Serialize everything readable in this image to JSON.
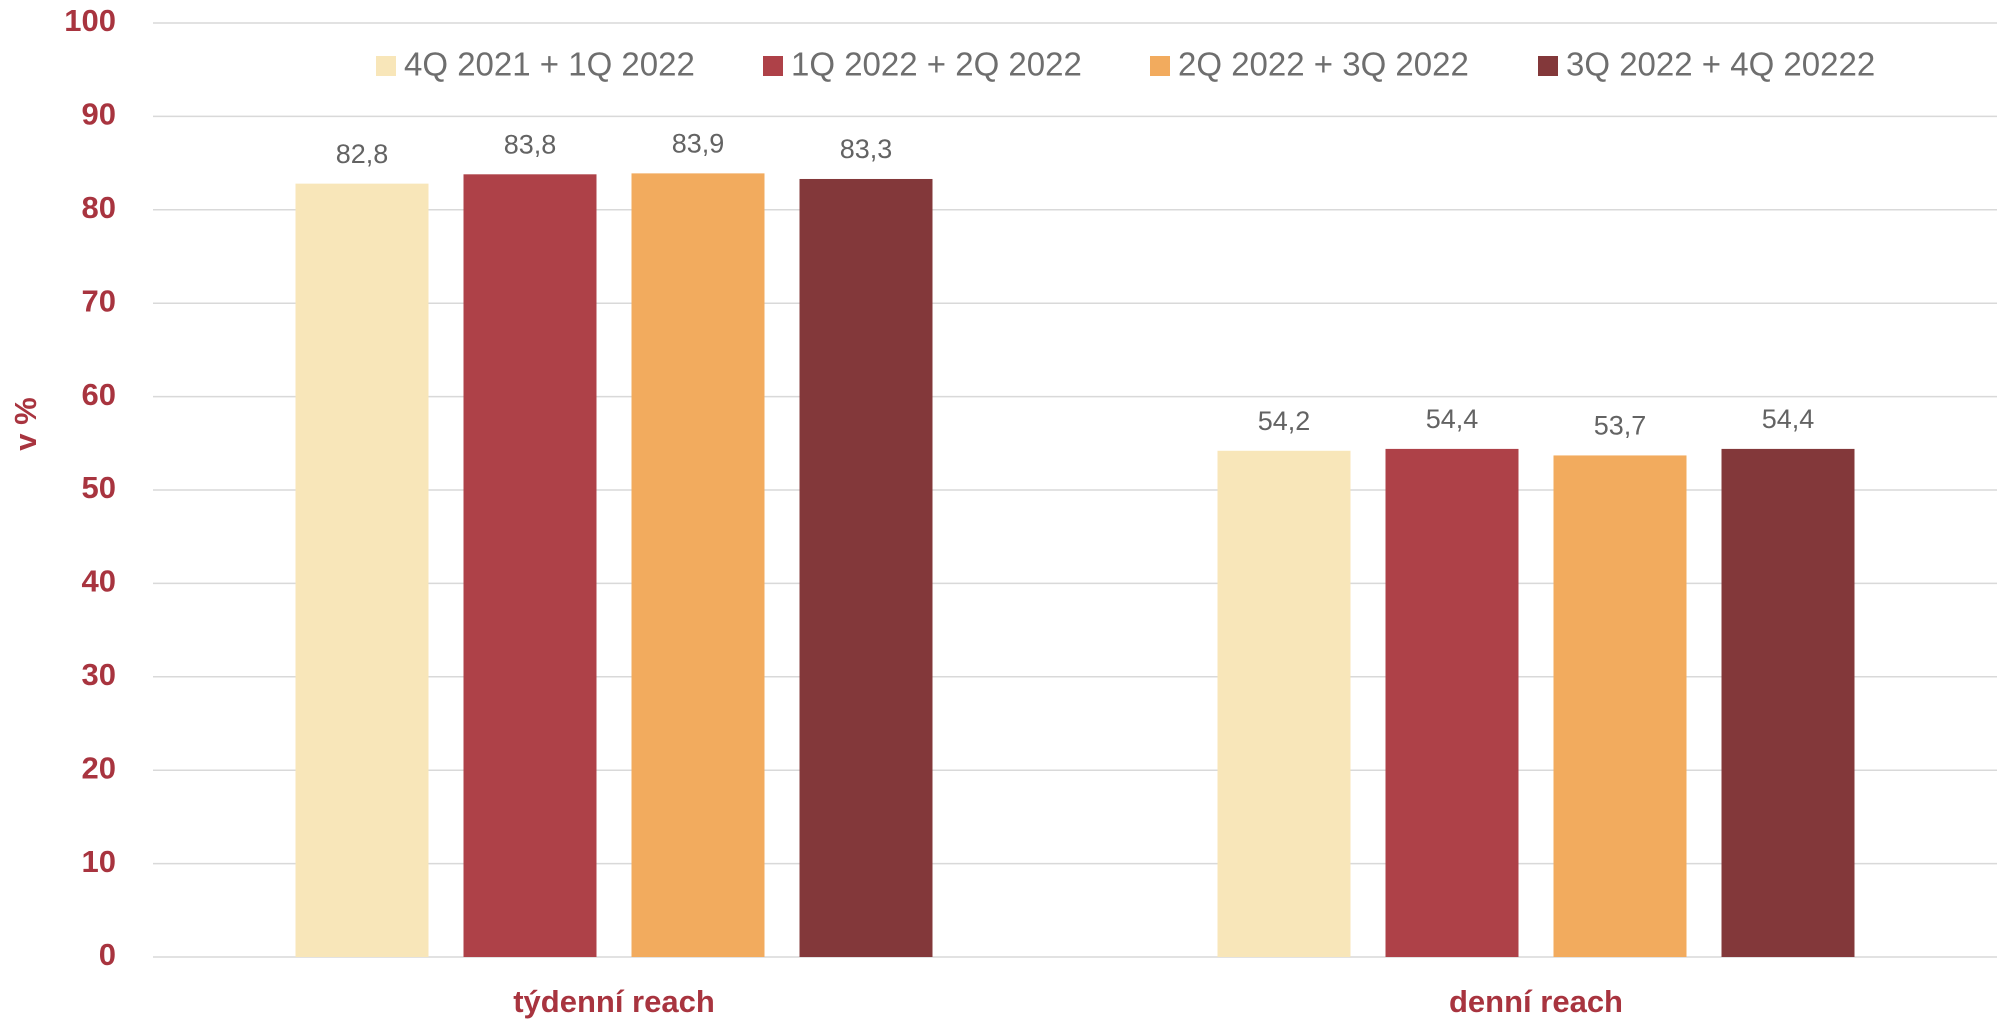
{
  "chart_data": {
    "type": "bar",
    "ylabel": "v %",
    "categories": [
      "týdenní reach",
      "denní reach"
    ],
    "series": [
      {
        "name": "4Q 2021 + 1Q 2022",
        "color": "#f8e6b9",
        "values": [
          82.8,
          54.2
        ],
        "value_labels": [
          "82,8",
          "54,2"
        ]
      },
      {
        "name": "1Q 2022 + 2Q 2022",
        "color": "#ae4148",
        "values": [
          83.8,
          54.4
        ],
        "value_labels": [
          "83,8",
          "54,4"
        ]
      },
      {
        "name": "2Q 2022 + 3Q 2022",
        "color": "#f2ab5e",
        "values": [
          83.9,
          53.7
        ],
        "value_labels": [
          "83,9",
          "53,7"
        ]
      },
      {
        "name": "3Q 2022 + 4Q 20222",
        "color": "#83383a",
        "values": [
          83.3,
          54.4
        ],
        "value_labels": [
          "83,3",
          "54,4"
        ]
      }
    ],
    "ylim": [
      0,
      100
    ],
    "yticks": [
      0,
      10,
      20,
      30,
      40,
      50,
      60,
      70,
      80,
      90,
      100
    ],
    "grid": true,
    "legend": "top"
  }
}
